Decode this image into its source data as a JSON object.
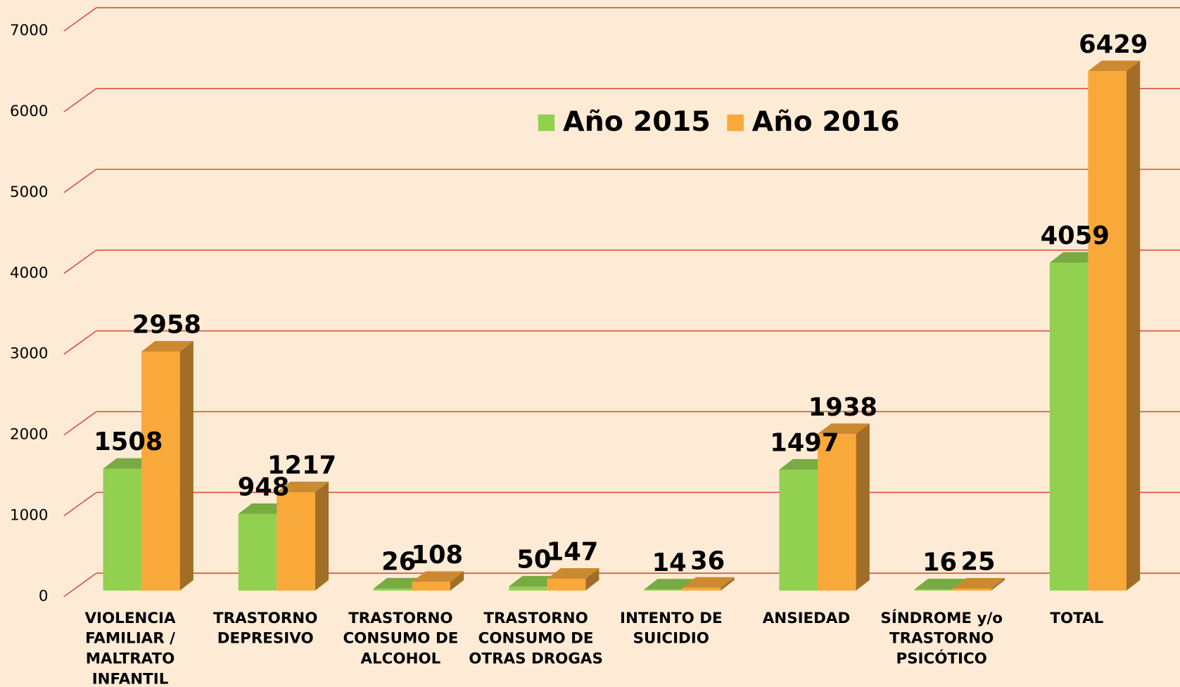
{
  "chart_data": {
    "type": "bar3d",
    "categories": [
      "VIOLENCIA FAMILIAR / MALTRATO INFANTIL",
      "TRASTORNO DEPRESIVO",
      "TRASTORNO CONSUMO DE ALCOHOL",
      "TRASTORNO CONSUMO DE OTRAS DROGAS",
      "INTENTO DE SUICIDIO",
      "ANSIEDAD",
      "SÍNDROME y/o TRASTORNO PSICÓTICO",
      "TOTAL"
    ],
    "series": [
      {
        "name": "Año 2015",
        "color": "#92d050",
        "values": [
          1508,
          948,
          26,
          50,
          14,
          1497,
          16,
          4059
        ]
      },
      {
        "name": "Año 2016",
        "color": "#f9a83a",
        "values": [
          2958,
          1217,
          108,
          147,
          36,
          1938,
          25,
          6429
        ]
      }
    ],
    "ylim": [
      0,
      7000
    ],
    "yticks": [
      0,
      1000,
      2000,
      3000,
      4000,
      5000,
      6000,
      7000
    ],
    "grid": true
  }
}
